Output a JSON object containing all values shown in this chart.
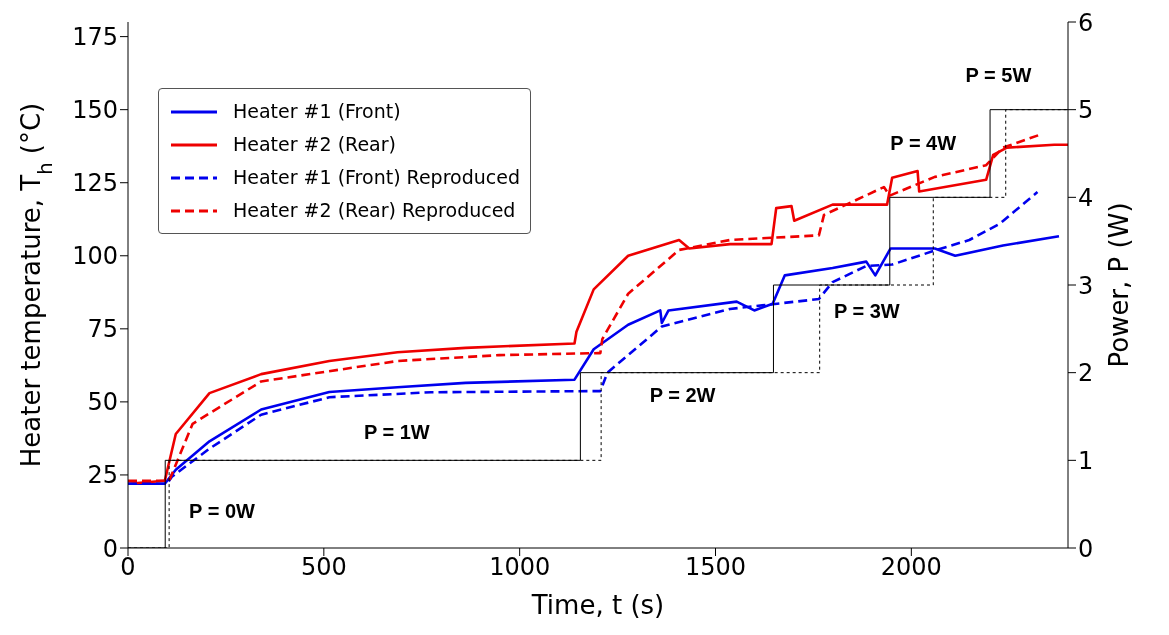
{
  "chart_data": {
    "type": "line",
    "xlabel": "Time, t (s)",
    "ylabel": "Heater temperature, T$_{h}$ (°C)",
    "y2label": "Power, P (W)",
    "xlim": [
      0,
      2400
    ],
    "xticks": [
      0,
      500,
      1000,
      1500,
      2000
    ],
    "ylim": [
      0,
      180
    ],
    "yticks": [
      0,
      25,
      50,
      75,
      100,
      125,
      150,
      175
    ],
    "y2lim": [
      0,
      6
    ],
    "y2ticks": [
      0,
      1,
      2,
      3,
      4,
      5,
      6
    ],
    "legend": "top left",
    "marker": "none",
    "series": [
      {
        "name": "Heater #1 (Front)",
        "color": "#0000ee",
        "line_style": "solid",
        "x": [
          0,
          94,
          122,
          208,
          340,
          514,
          688,
          862,
          1140,
          1189,
          1277,
          1359,
          1363,
          1380,
          1554,
          1599,
          1646,
          1677,
          1799,
          1885,
          1908,
          1947,
          2060,
          2112,
          2234,
          2377
        ],
        "values": [
          22,
          22,
          26.8,
          36.5,
          47.4,
          53.4,
          55,
          56.5,
          57.6,
          68,
          76.4,
          81.3,
          77,
          81.3,
          84.3,
          81.3,
          83.6,
          93.3,
          95.8,
          98,
          93.3,
          102.5,
          102.5,
          100,
          103.5,
          106.7
        ]
      },
      {
        "name": "Heater #2 (Rear)",
        "color": "#ee0000",
        "line_style": "solid",
        "x": [
          0,
          94,
          122,
          208,
          340,
          514,
          688,
          862,
          1140,
          1145,
          1189,
          1277,
          1407,
          1433,
          1537,
          1643,
          1655,
          1694,
          1701,
          1799,
          1938,
          1951,
          2016,
          2020,
          2191,
          2209,
          2244,
          2365,
          2400
        ],
        "values": [
          22,
          23,
          39,
          53,
          59.5,
          64,
          67,
          68.5,
          70,
          74,
          88.5,
          100,
          105.4,
          102.5,
          104,
          104,
          116.3,
          117,
          112,
          117.5,
          117.5,
          126.7,
          129,
          122,
          126,
          134.5,
          137,
          138,
          138
        ]
      },
      {
        "name": "Heater #1 (Front) Reproduced",
        "color": "#0000ee",
        "line_style": "dashed",
        "x": [
          0,
          100,
          112,
          208,
          340,
          514,
          774,
          1201,
          1206,
          1224,
          1363,
          1537,
          1764,
          1799,
          1885,
          1951,
          2060,
          2148,
          2226,
          2322
        ],
        "values": [
          22,
          22,
          24.4,
          34,
          45.6,
          51.6,
          53.3,
          53.7,
          53.7,
          60,
          75.8,
          81.8,
          85.2,
          91,
          96.5,
          97,
          101.8,
          105.4,
          111,
          121.8
        ]
      },
      {
        "name": "Heater #2 (Rear) Reproduced",
        "color": "#ee0000",
        "line_style": "dashed",
        "x": [
          0,
          100,
          105,
          165,
          340,
          688,
          948,
          1201,
          1206,
          1211,
          1277,
          1407,
          1537,
          1764,
          1777,
          1930,
          1945,
          2060,
          2191,
          2234,
          2330
        ],
        "values": [
          23,
          23,
          23,
          42.5,
          57,
          64,
          66,
          66.7,
          66.7,
          71.5,
          87,
          102,
          105.4,
          107,
          114,
          123.5,
          120.6,
          127,
          131,
          137,
          141.5
        ]
      },
      {
        "type": "step",
        "axis": "y2",
        "color": "#000000",
        "line_style": "solid",
        "x": [
          0,
          95,
          1155,
          1648,
          1945,
          2201,
          2400
        ],
        "values": [
          0,
          1,
          2,
          3,
          4,
          5,
          5
        ]
      },
      {
        "type": "step",
        "axis": "y2",
        "color": "#000000",
        "line_style": "dotted",
        "x": [
          0,
          105,
          1208,
          1766,
          2056,
          2241,
          2400
        ],
        "values": [
          0,
          1,
          2,
          3,
          4,
          5,
          5
        ]
      }
    ],
    "annotations": [
      "P = 0W",
      "P = 1W",
      "P = 2W",
      "P = 3W",
      "P = 4W",
      "P = 5W"
    ]
  }
}
